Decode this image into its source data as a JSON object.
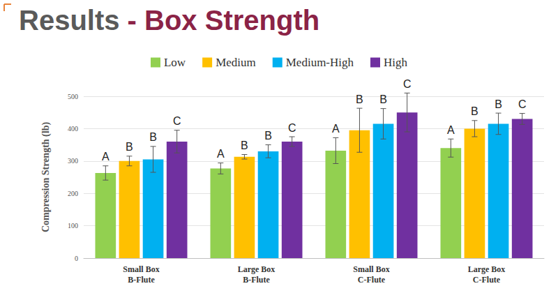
{
  "chart_data": {
    "type": "bar",
    "title": "Results - Box Strength",
    "y_label": "Compression Strength (lb)",
    "categories": [
      "Small Box\nB-Flute",
      "Large Box\nB-Flute",
      "Small Box\nC-Flute",
      "Large Box\nC-Flute"
    ],
    "series": [
      {
        "name": "Low",
        "color": "#92D050",
        "values": [
          263,
          277,
          332,
          340
        ],
        "errors": [
          22,
          17,
          40,
          28
        ],
        "letters": [
          "A",
          "A",
          "A",
          "A"
        ]
      },
      {
        "name": "Medium",
        "color": "#FFC000",
        "values": [
          300,
          313,
          395,
          400
        ],
        "errors": [
          15,
          7,
          68,
          25
        ],
        "letters": [
          "B",
          "B",
          "B",
          "B"
        ]
      },
      {
        "name": "Medium-High",
        "color": "#00B0F0",
        "values": [
          305,
          330,
          415,
          415
        ],
        "errors": [
          40,
          20,
          47,
          33
        ],
        "letters": [
          "B",
          "B",
          "B",
          "B"
        ]
      },
      {
        "name": "High",
        "color": "#7030A0",
        "values": [
          360,
          360,
          450,
          430
        ],
        "errors": [
          35,
          15,
          60,
          17
        ],
        "letters": [
          "C",
          "C",
          "C",
          "C"
        ]
      }
    ],
    "ylim": [
      0,
      500
    ],
    "yticks": [
      0,
      100,
      200,
      300,
      400,
      500
    ],
    "grid": true,
    "legend": "top"
  }
}
